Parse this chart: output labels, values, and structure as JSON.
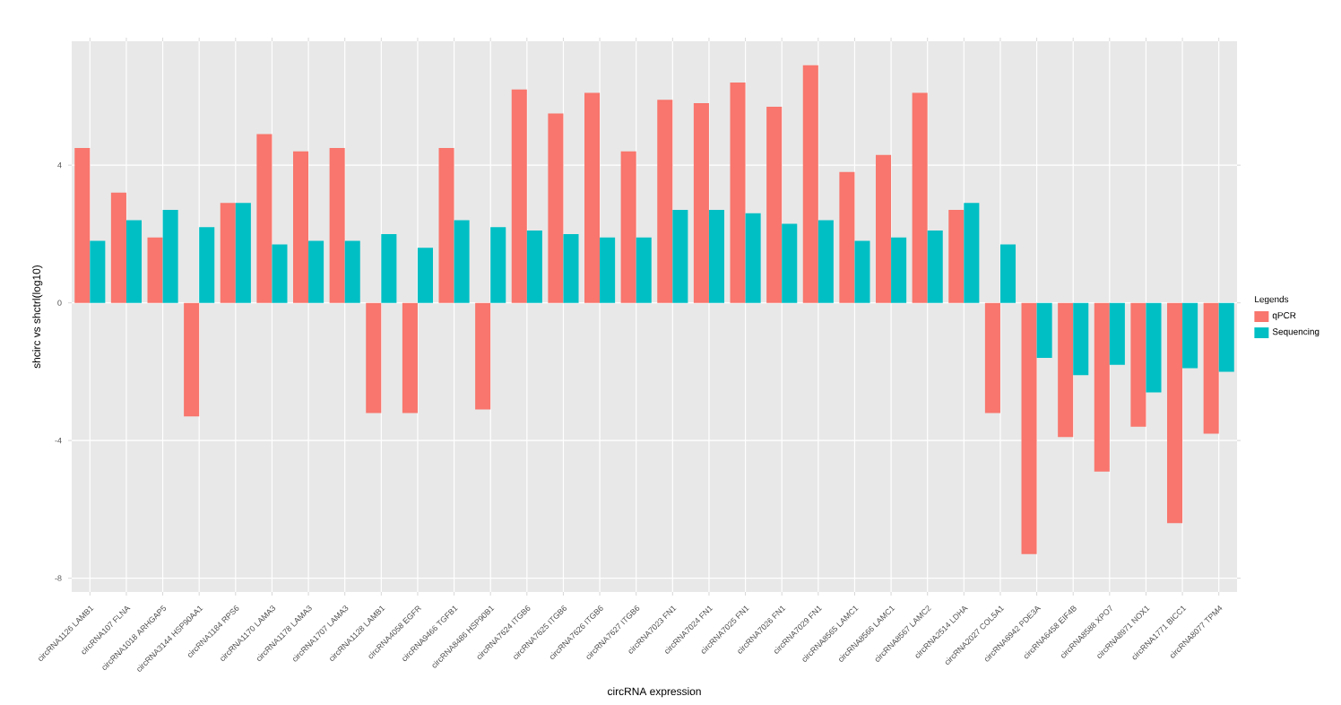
{
  "chart_data": {
    "type": "bar",
    "xlabel": "circRNA expression",
    "ylabel": "shcirc vs shctrl(log10)",
    "legend_title": "Legends",
    "legend": "right",
    "grid": true,
    "categories": [
      "circRNA1126 LAMB1",
      "circRNA107 FLNA",
      "circRNA1018 ARHGAP5",
      "circRNA3144 HSP90AA1",
      "circRNA1184 RPS6",
      "circRNA1170 LAMA3",
      "circRNA1178 LAMA3",
      "circRNA1707 LAMA3",
      "circRNA1128 LAMB1",
      "circRNA4058 EGFR",
      "circRNA9466 TGFB1",
      "circRNA8486 HSP90B1",
      "circRNA7624 ITGB6",
      "circRNA7625 ITGB6",
      "circRNA7626 ITGB6",
      "circRNA7627 ITGB6",
      "circRNA7023 FN1",
      "circRNA7024 FN1",
      "circRNA7025 FN1",
      "circRNA7026 FN1",
      "circRNA7029 FN1",
      "circRNA8565 LAMC1",
      "circRNA8566 LAMC1",
      "circRNA8567 LAMC2",
      "circRNA2514 LDHA",
      "circRNA2027 COL5A1",
      "circRNA6942 PDE3A",
      "circRNA6458 EIF4B",
      "circRNA8588 XPO7",
      "circRNA8971 NOX1",
      "circRNA1771 BICC1",
      "circRNA8077 TPM4"
    ],
    "series": [
      {
        "name": "qPCR",
        "color": "#f8766d",
        "values": [
          4.5,
          3.2,
          1.9,
          -3.3,
          2.9,
          4.9,
          4.4,
          4.5,
          -3.2,
          -3.2,
          4.5,
          -3.1,
          6.2,
          5.5,
          6.1,
          4.4,
          5.9,
          5.8,
          6.4,
          5.7,
          6.9,
          3.8,
          4.3,
          6.1,
          2.7,
          -3.2,
          -7.3,
          -3.9,
          -4.9,
          -3.6,
          -6.4,
          -3.8
        ]
      },
      {
        "name": "Sequencing",
        "color": "#00bfc4",
        "values": [
          1.8,
          2.4,
          2.7,
          2.2,
          2.9,
          1.7,
          1.8,
          1.8,
          2.0,
          1.6,
          2.4,
          2.2,
          2.1,
          2.0,
          1.9,
          1.9,
          2.7,
          2.7,
          2.6,
          2.3,
          2.4,
          1.8,
          1.9,
          2.1,
          2.9,
          1.7,
          -1.6,
          -2.1,
          -1.8,
          -2.6,
          -1.9,
          -2.0
        ]
      }
    ],
    "ylim": [
      -8.4,
      7.6
    ],
    "yticks": [
      -8,
      -4,
      0,
      4
    ]
  }
}
